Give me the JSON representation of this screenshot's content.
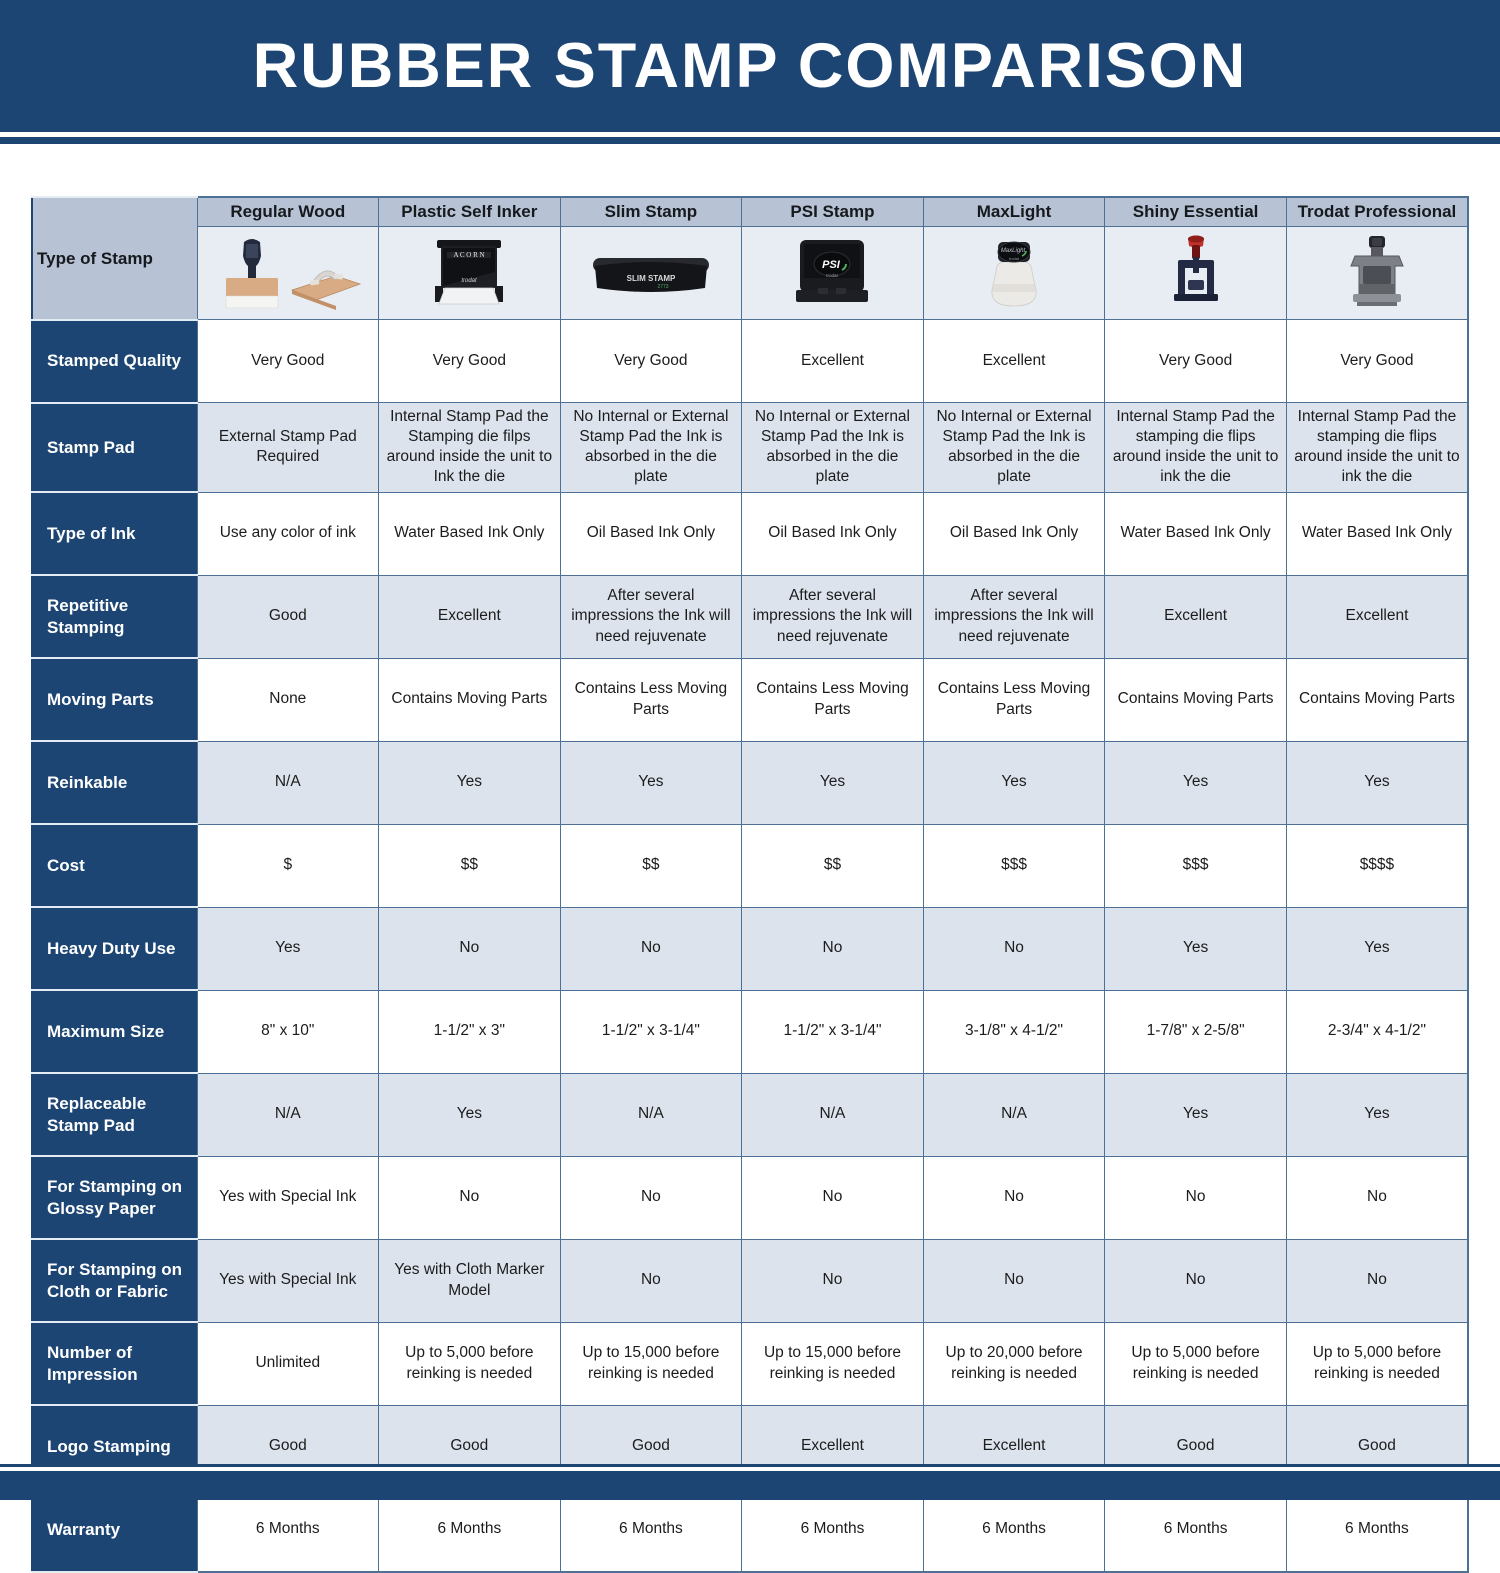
{
  "title": "RUBBER STAMP COMPARISON",
  "colors": {
    "banner_navy": "#1d4573",
    "column_header_bg": "#b7c3d4",
    "shaded_row_bg": "#dce3ed",
    "image_row_bg": "#e8edf3",
    "grid_border": "#4d7195"
  },
  "table": {
    "corner_label": "Type of Stamp",
    "columns": [
      {
        "label": "Regular Wood",
        "icon": "regular-wood-stamp-image"
      },
      {
        "label": "Plastic Self Inker",
        "icon": "plastic-self-inker-stamp-image"
      },
      {
        "label": "Slim Stamp",
        "icon": "slim-stamp-image"
      },
      {
        "label": "PSI Stamp",
        "icon": "psi-stamp-image"
      },
      {
        "label": "MaxLight",
        "icon": "maxlight-stamp-image"
      },
      {
        "label": "Shiny Essential",
        "icon": "shiny-essential-stamp-image"
      },
      {
        "label": "Trodat Professional",
        "icon": "trodat-professional-stamp-image"
      }
    ],
    "rows": [
      {
        "label": "Stamped Quality",
        "values": [
          "Very Good",
          "Very Good",
          "Very Good",
          "Excellent",
          "Excellent",
          "Very Good",
          "Very Good"
        ]
      },
      {
        "label": "Stamp Pad",
        "values": [
          "External Stamp Pad Required",
          "Internal Stamp Pad the Stamping die filps around inside the unit to Ink the die",
          "No Internal or External Stamp Pad the Ink is absorbed in the die plate",
          "No Internal or External Stamp Pad the Ink is absorbed in the die plate",
          "No Internal or External Stamp Pad the Ink is absorbed in the die plate",
          "Internal Stamp Pad the stamping die flips around inside the unit to ink the die",
          "Internal Stamp Pad the stamping die flips around inside the unit to ink the die"
        ]
      },
      {
        "label": "Type of Ink",
        "values": [
          "Use any color of ink",
          "Water Based Ink Only",
          "Oil Based Ink Only",
          "Oil Based Ink Only",
          "Oil Based Ink Only",
          "Water Based Ink Only",
          "Water Based Ink Only"
        ]
      },
      {
        "label": "Repetitive Stamping",
        "values": [
          "Good",
          "Excellent",
          "After several impressions the Ink will need rejuvenate",
          "After several impressions the Ink will need rejuvenate",
          "After several impressions the Ink will need rejuvenate",
          "Excellent",
          "Excellent"
        ]
      },
      {
        "label": "Moving Parts",
        "values": [
          "None",
          "Contains Moving Parts",
          "Contains Less Moving Parts",
          "Contains Less Moving Parts",
          "Contains Less Moving Parts",
          "Contains Moving Parts",
          "Contains Moving Parts"
        ]
      },
      {
        "label": "Reinkable",
        "values": [
          "N/A",
          "Yes",
          "Yes",
          "Yes",
          "Yes",
          "Yes",
          "Yes"
        ]
      },
      {
        "label": "Cost",
        "values": [
          "$",
          "$$",
          "$$",
          "$$",
          "$$$",
          "$$$",
          "$$$$"
        ]
      },
      {
        "label": "Heavy Duty Use",
        "values": [
          "Yes",
          "No",
          "No",
          "No",
          "No",
          "Yes",
          "Yes"
        ]
      },
      {
        "label": "Maximum Size",
        "values": [
          "8\" x 10\"",
          "1-1/2\" x 3\"",
          "1-1/2\" x 3-1/4\"",
          "1-1/2\" x 3-1/4\"",
          "3-1/8\" x 4-1/2\"",
          "1-7/8\" x 2-5/8\"",
          "2-3/4\" x 4-1/2\""
        ]
      },
      {
        "label": "Replaceable Stamp Pad",
        "values": [
          "N/A",
          "Yes",
          "N/A",
          "N/A",
          "N/A",
          "Yes",
          "Yes"
        ]
      },
      {
        "label": "For Stamping on Glossy Paper",
        "values": [
          "Yes with Special Ink",
          "No",
          "No",
          "No",
          "No",
          "No",
          "No"
        ]
      },
      {
        "label": "For Stamping on Cloth or Fabric",
        "values": [
          "Yes with Special Ink",
          "Yes with Cloth Marker Model",
          "No",
          "No",
          "No",
          "No",
          "No"
        ]
      },
      {
        "label": "Number of Impression",
        "values": [
          "Unlimited",
          "Up to 5,000 before reinking is needed",
          "Up to 15,000 before reinking is needed",
          "Up to 15,000 before reinking is needed",
          "Up to 20,000 before reinking is needed",
          "Up to 5,000 before reinking is needed",
          "Up to 5,000 before reinking is needed"
        ]
      },
      {
        "label": "Logo Stamping",
        "values": [
          "Good",
          "Good",
          "Good",
          "Excellent",
          "Excellent",
          "Good",
          "Good"
        ]
      },
      {
        "label": "Warranty",
        "values": [
          "6 Months",
          "6 Months",
          "6 Months",
          "6 Months",
          "6 Months",
          "6 Months",
          "6 Months"
        ]
      }
    ]
  }
}
